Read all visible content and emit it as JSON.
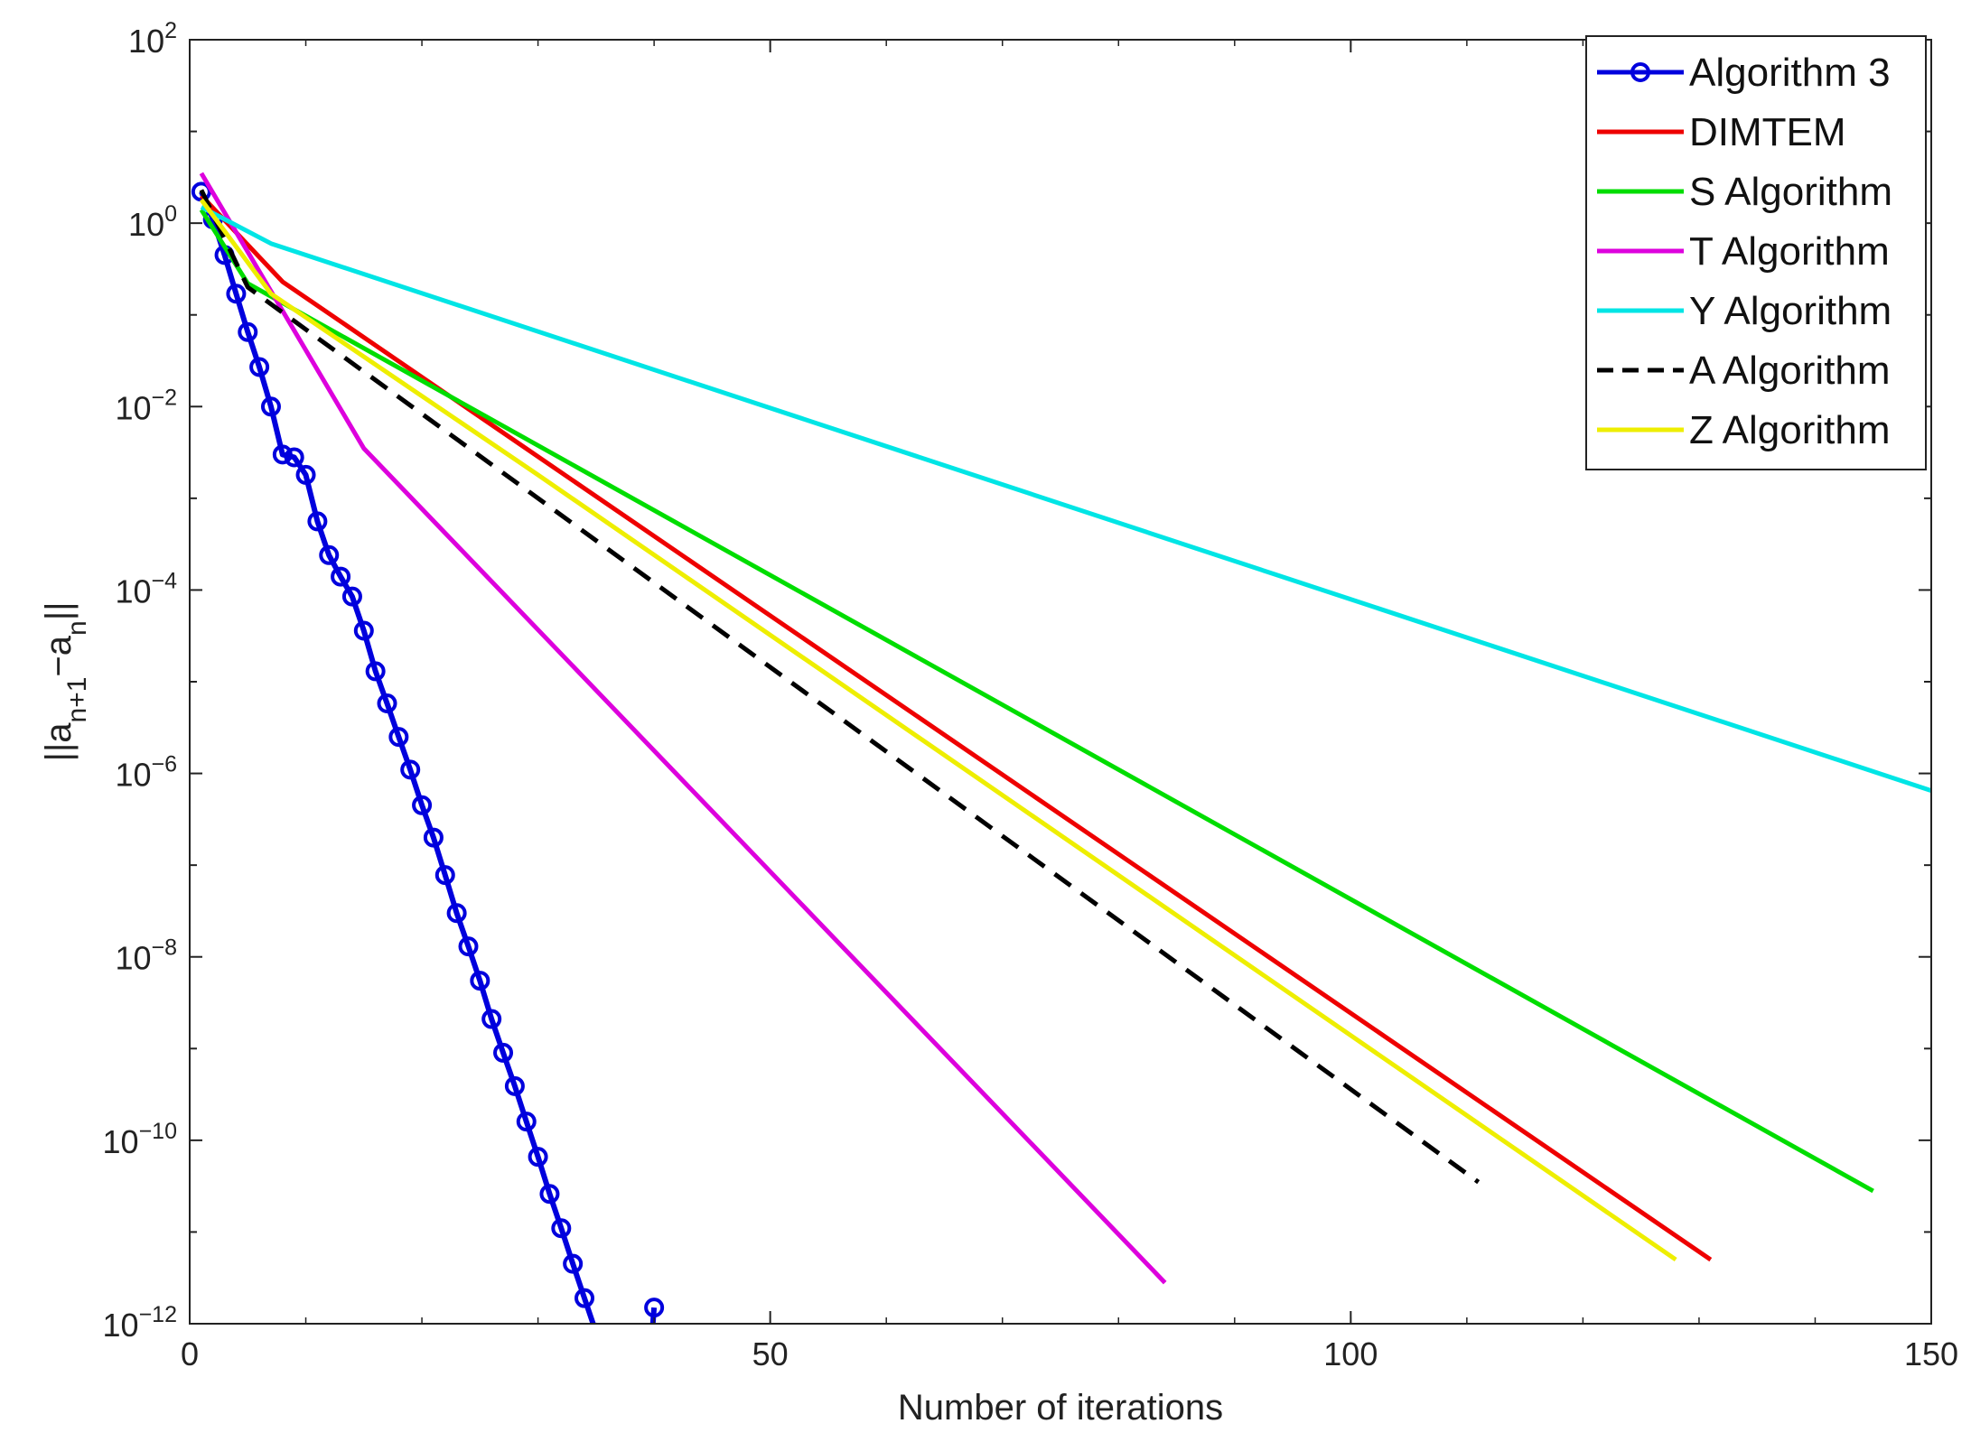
{
  "chart_data": {
    "type": "line",
    "title": "",
    "xlabel": "Number of iterations",
    "ylabel": {
      "base": "||a",
      "sub1": "n+1",
      "mid": "−a",
      "sub2": "n",
      "end": "||"
    },
    "xlim": [
      0,
      150
    ],
    "ylim_exponents": [
      -12,
      2
    ],
    "yscale": "log",
    "grid": false,
    "legend_position": "top-right",
    "x_ticks": [
      "0",
      "50",
      "100",
      "150"
    ],
    "y_ticks": [
      {
        "base": "10",
        "exp": "2"
      },
      {
        "base": "10",
        "exp": "0"
      },
      {
        "base": "10",
        "exp": "−2"
      },
      {
        "base": "10",
        "exp": "−4"
      },
      {
        "base": "10",
        "exp": "−6"
      },
      {
        "base": "10",
        "exp": "−8"
      },
      {
        "base": "10",
        "exp": "−10"
      },
      {
        "base": "10",
        "exp": "−12"
      }
    ],
    "series": [
      {
        "name": "Algorithm 3",
        "color": "#0000dd",
        "dash": "solid",
        "marker": "circle",
        "x": [
          1,
          2,
          3,
          4,
          5,
          6,
          7,
          8,
          9,
          10,
          11,
          12,
          13,
          14,
          15,
          16,
          17,
          18,
          19,
          20,
          21,
          22,
          23,
          24,
          25,
          26,
          27,
          28,
          29,
          30,
          31,
          32,
          33,
          34,
          35,
          36,
          37,
          38,
          39,
          40
        ],
        "y": [
          2.2,
          1.1,
          0.45,
          0.17,
          0.065,
          0.027,
          0.01,
          0.003,
          0.0028,
          0.0018,
          0.00056,
          0.00024,
          0.00014,
          8.5e-05,
          3.6e-05,
          1.3e-05,
          5.8e-06,
          2.5e-06,
          1.1e-06,
          4.5e-07,
          2e-07,
          7.8e-08,
          3e-08,
          1.3e-08,
          5.5e-09,
          2.1e-09,
          9e-10,
          3.9e-10,
          1.6e-10,
          6.6e-11,
          2.6e-11,
          1.1e-11,
          4.5e-12,
          1.9e-12,
          8e-13,
          3.3e-13,
          1.4e-13,
          6e-14,
          3e-14,
          1.5e-12
        ]
      },
      {
        "name": "DIMTEM",
        "color": "#ee0000",
        "dash": "solid",
        "marker": "none",
        "x": [
          1,
          8,
          131
        ],
        "y": [
          2.0,
          0.23,
          5e-12
        ]
      },
      {
        "name": "S Algorithm",
        "color": "#00dd00",
        "dash": "solid",
        "marker": "none",
        "x": [
          1,
          5,
          145
        ],
        "y": [
          1.4,
          0.22,
          2.8e-11
        ]
      },
      {
        "name": "T Algorithm",
        "color": "#dd00dd",
        "dash": "solid",
        "marker": "none",
        "x": [
          1,
          15,
          84
        ],
        "y": [
          3.5,
          0.0035,
          2.8e-12
        ]
      },
      {
        "name": "Y Algorithm",
        "color": "#00e5e5",
        "dash": "solid",
        "marker": "none",
        "x": [
          1,
          7,
          150
        ],
        "y": [
          1.5,
          0.6,
          6.5e-07
        ]
      },
      {
        "name": "A Algorithm",
        "color": "#000000",
        "dash": "dashed",
        "marker": "none",
        "x": [
          1,
          5,
          111
        ],
        "y": [
          2.3,
          0.2,
          3.5e-11
        ]
      },
      {
        "name": "Z Algorithm",
        "color": "#eeee00",
        "dash": "solid",
        "marker": "none",
        "x": [
          1,
          7,
          30,
          128
        ],
        "y": [
          1.8,
          0.17,
          0.0018,
          5e-12
        ]
      }
    ]
  }
}
